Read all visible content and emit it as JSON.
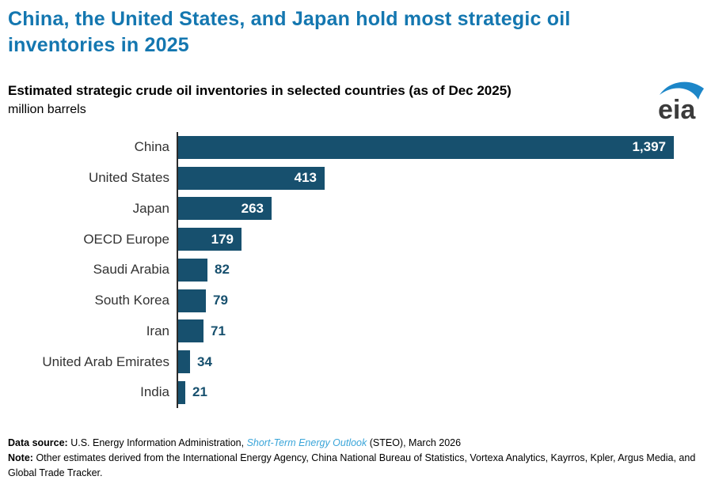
{
  "page": {
    "title": "China, the United States, and Japan hold most strategic oil inventories in 2025",
    "subtitle": "Estimated strategic crude oil inventories in selected countries (as of Dec 2025)",
    "unit": "million barrels",
    "logo_text": "eia"
  },
  "colors": {
    "title_blue": "#1477b0",
    "bar_navy": "#17506e",
    "link_blue": "#3aa5d9",
    "axis_dark": "#2b2b2b",
    "label_gray": "#333333",
    "logo_swoosh_blue": "#1c86c8",
    "logo_text_gray": "#3b3b3b"
  },
  "chart_data": {
    "type": "bar",
    "orientation": "horizontal",
    "title": "Estimated strategic crude oil inventories in selected countries (as of Dec 2025)",
    "xlabel": "million barrels",
    "ylabel": "",
    "categories": [
      "China",
      "United States",
      "Japan",
      "OECD Europe",
      "Saudi Arabia",
      "South Korea",
      "Iran",
      "United Arab Emirates",
      "India"
    ],
    "values": [
      1397,
      413,
      263,
      179,
      82,
      79,
      71,
      34,
      21
    ],
    "value_labels": [
      "1,397",
      "413",
      "263",
      "179",
      "82",
      "79",
      "71",
      "34",
      "21"
    ],
    "xlim": [
      0,
      1397
    ],
    "grid": false,
    "legend": "none",
    "bar_color": "#17506e",
    "inside_label_min_value": 150
  },
  "footer": {
    "data_source_label": "Data source:",
    "data_source_pre": "U.S. Energy Information Administration,",
    "data_source_link": "Short-Term Energy Outlook",
    "data_source_post": "(STEO), March 2026",
    "note_label": "Note:",
    "note_text": "Other estimates derived from the International Energy Agency, China National Bureau of Statistics, Vortexa Analytics, Kayrros, Kpler, Argus Media, and Global Trade Tracker."
  }
}
